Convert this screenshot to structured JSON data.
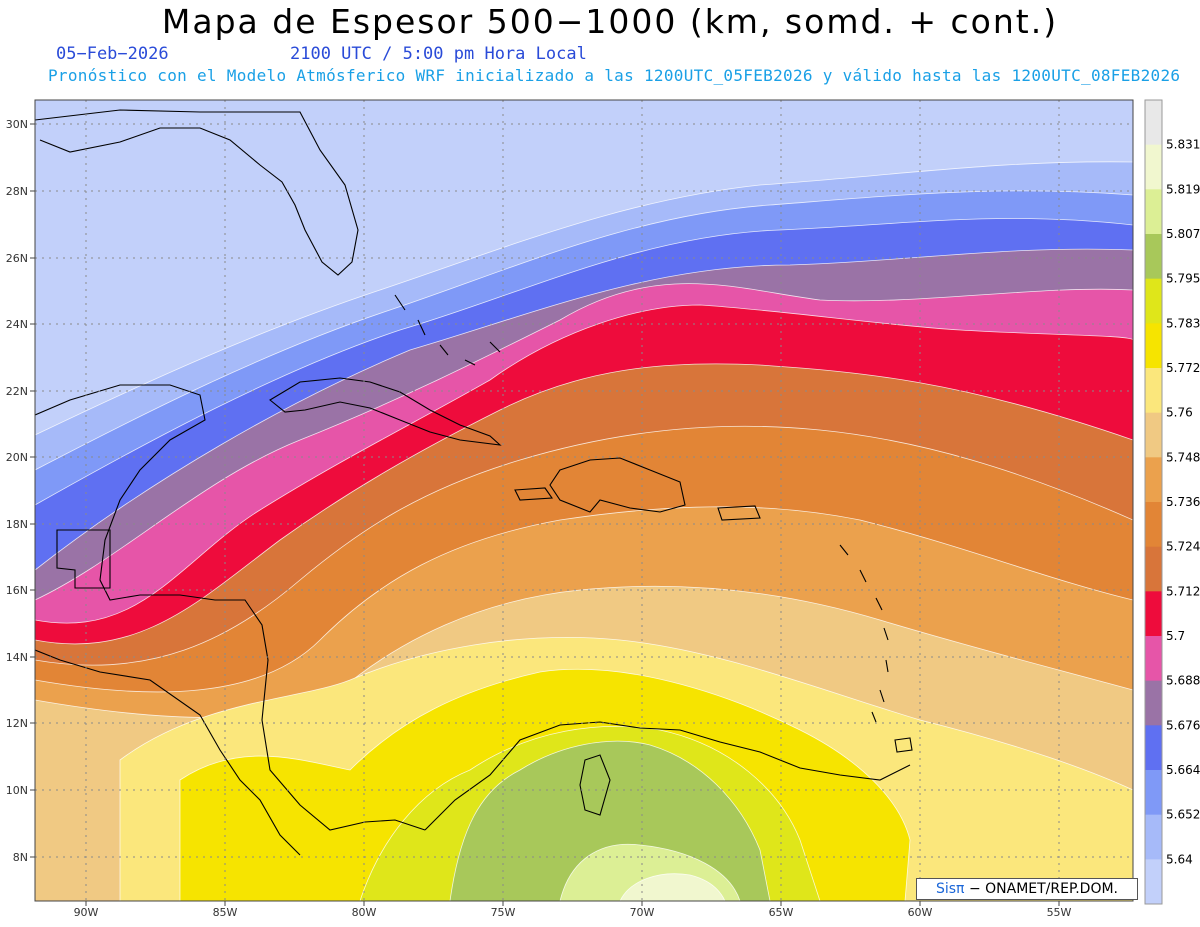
{
  "header": {
    "title": "Mapa de Espesor 500−1000 (km, somd. + cont.)",
    "date": "05−Feb−2026",
    "time": "2100 UTC / 5:00 pm Hora Local",
    "subtitle": "Pronóstico con el Modelo Atmósferico WRF inicializado a las 1200UTC_05FEB2026 y válido hasta las  1200UTC_08FEB2026"
  },
  "axes": {
    "lat_labels": [
      "30N",
      "28N",
      "26N",
      "24N",
      "22N",
      "20N",
      "18N",
      "16N",
      "14N",
      "12N",
      "10N",
      "8N"
    ],
    "lon_labels": [
      "90W",
      "85W",
      "80W",
      "75W",
      "70W",
      "65W",
      "60W",
      "55W"
    ]
  },
  "colorbar": {
    "labels": [
      "5.831",
      "5.819",
      "5.807",
      "5.795",
      "5.783",
      "5.772",
      "5.76",
      "5.748",
      "5.736",
      "5.724",
      "5.712",
      "5.7",
      "5.688",
      "5.676",
      "5.664",
      "5.652",
      "5.64"
    ],
    "colors": [
      "#e8e8e8",
      "#f1f7cf",
      "#dcef95",
      "#a8c85a",
      "#dfe61a",
      "#f6e400",
      "#fbe77c",
      "#f0c983",
      "#eba14d",
      "#e28536",
      "#d8753a",
      "#ee0c3c",
      "#e655a8",
      "#9a73a6",
      "#5f70f2",
      "#7f99f7",
      "#a6baf9",
      "#c2d0fa"
    ]
  },
  "credit": {
    "logo": "Sisπ",
    "text": "− ONAMET/REP.DOM."
  }
}
